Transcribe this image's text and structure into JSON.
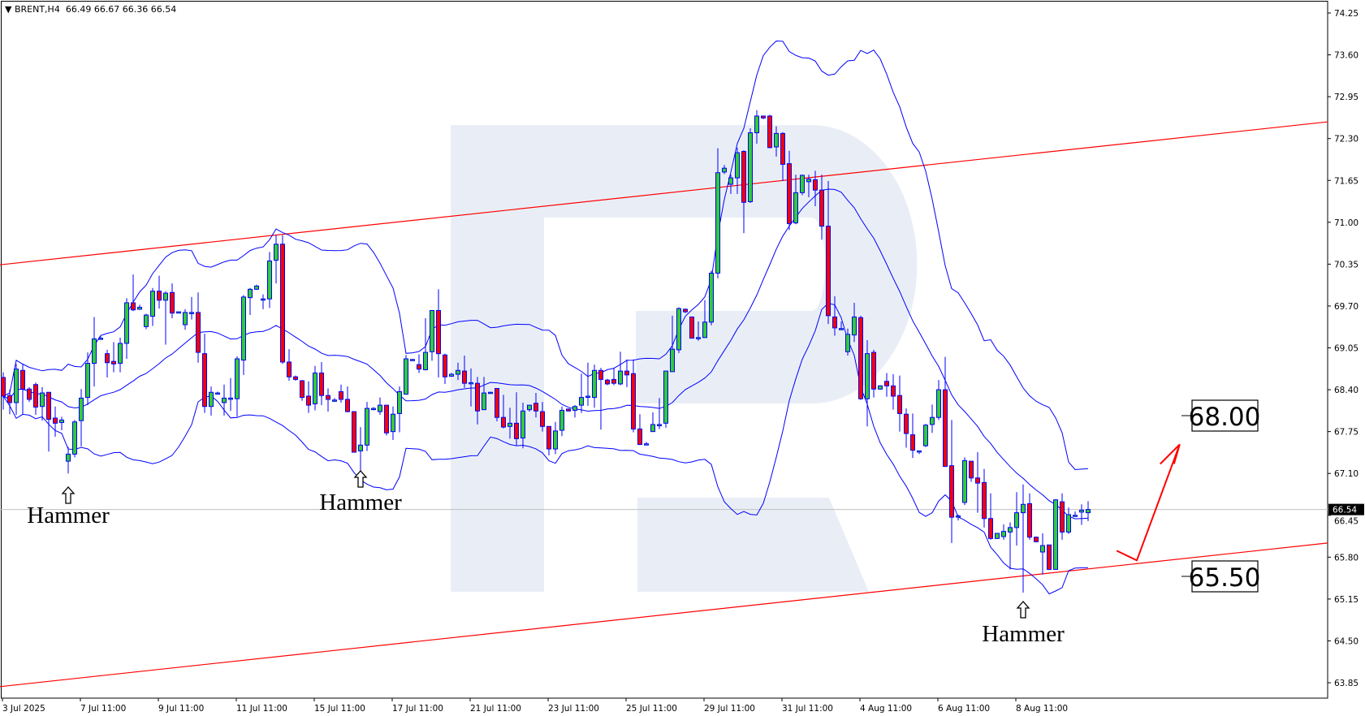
{
  "header": {
    "menu_icon": "triangle-down-icon",
    "symbol": "BRENT,H4",
    "ohlc": "66.49 66.67 66.36 66.54"
  },
  "chart_data": {
    "type": "candlestick",
    "symbol": "BRENT",
    "timeframe": "H4",
    "ylim": [
      63.85,
      74.25
    ],
    "price_ticks": [
      "74.25",
      "73.60",
      "72.95",
      "72.30",
      "71.65",
      "71.00",
      "70.35",
      "69.70",
      "69.05",
      "68.40",
      "67.75",
      "67.10",
      "66.45",
      "65.80",
      "65.15",
      "64.50",
      "63.85"
    ],
    "date_ticks": [
      "3 Jul 2025",
      "7 Jul 11:00",
      "9 Jul 11:00",
      "11 Jul 11:00",
      "15 Jul 11:00",
      "17 Jul 11:00",
      "21 Jul 11:00",
      "23 Jul 11:00",
      "25 Jul 11:00",
      "29 Jul 11:00",
      "31 Jul 11:00",
      "4 Aug 11:00",
      "6 Aug 11:00",
      "8 Aug 11:00"
    ],
    "current_price": "66.54",
    "colors": {
      "bull": "#32cd32",
      "bear": "#ff0000",
      "outline": "#0000ff",
      "bands": "#0000ff",
      "channel": "#ff0000",
      "watermark": "#e9eef6",
      "price_line": "#c0c0c0"
    },
    "indicator": "Bollinger Bands",
    "candles_format": [
      "open",
      "high",
      "low",
      "close"
    ],
    "candles": [
      [
        68.59,
        68.67,
        68.09,
        68.3
      ],
      [
        68.31,
        68.4,
        68.02,
        68.2
      ],
      [
        68.2,
        68.8,
        68.01,
        68.72
      ],
      [
        68.7,
        68.8,
        68.01,
        68.41
      ],
      [
        68.41,
        68.44,
        68.21,
        68.25
      ],
      [
        68.48,
        68.51,
        68.01,
        68.13
      ],
      [
        68.14,
        68.44,
        67.92,
        68.35
      ],
      [
        68.36,
        68.36,
        67.44,
        67.94
      ],
      [
        67.96,
        68.14,
        67.67,
        67.88
      ],
      [
        67.89,
        67.98,
        67.77,
        67.93
      ],
      [
        67.29,
        67.51,
        67.1,
        67.4
      ],
      [
        67.4,
        67.93,
        67.35,
        67.9
      ],
      [
        67.92,
        68.41,
        67.52,
        68.27
      ],
      [
        68.28,
        68.98,
        68.16,
        68.81
      ],
      [
        68.81,
        69.53,
        68.45,
        69.19
      ],
      [
        69.19,
        69.23,
        69.18,
        69.2
      ],
      [
        68.96,
        69.02,
        68.59,
        68.82
      ],
      [
        68.84,
        69.14,
        68.67,
        68.8
      ],
      [
        68.81,
        69.21,
        68.67,
        69.12
      ],
      [
        69.12,
        69.82,
        68.88,
        69.75
      ],
      [
        69.75,
        70.19,
        69.62,
        69.64
      ],
      [
        69.65,
        69.72,
        69.64,
        69.68
      ],
      [
        69.38,
        69.58,
        69.34,
        69.56
      ],
      [
        69.54,
        69.98,
        69.39,
        69.93
      ],
      [
        69.93,
        70.17,
        69.66,
        69.79
      ],
      [
        69.79,
        69.93,
        69.1,
        69.9
      ],
      [
        69.91,
        70.05,
        69.51,
        69.59
      ],
      [
        69.59,
        69.61,
        69.59,
        69.61
      ],
      [
        69.41,
        69.65,
        69.33,
        69.6
      ],
      [
        69.59,
        69.84,
        69.49,
        69.6
      ],
      [
        69.6,
        69.91,
        68.82,
        68.98
      ],
      [
        68.96,
        69.27,
        68.04,
        68.14
      ],
      [
        68.14,
        68.45,
        68.0,
        68.36
      ],
      [
        68.35,
        68.37,
        68.34,
        68.35
      ],
      [
        68.2,
        68.48,
        68.0,
        68.27
      ],
      [
        68.27,
        68.58,
        68.07,
        68.27
      ],
      [
        68.26,
        68.92,
        67.98,
        68.88
      ],
      [
        68.86,
        69.87,
        68.63,
        69.84
      ],
      [
        69.83,
        69.98,
        69.56,
        69.96
      ],
      [
        69.96,
        70.03,
        69.95,
        70.01
      ],
      [
        69.81,
        69.88,
        69.65,
        69.81
      ],
      [
        69.81,
        70.54,
        69.67,
        70.4
      ],
      [
        70.41,
        70.8,
        70.05,
        70.66
      ],
      [
        70.66,
        70.8,
        68.8,
        68.83
      ],
      [
        68.83,
        69.03,
        68.54,
        68.6
      ],
      [
        68.6,
        68.62,
        68.54,
        68.56
      ],
      [
        68.54,
        68.55,
        68.23,
        68.28
      ],
      [
        68.3,
        68.53,
        68.04,
        68.16
      ],
      [
        68.18,
        68.77,
        68.08,
        68.66
      ],
      [
        68.66,
        68.83,
        68.16,
        68.31
      ],
      [
        68.31,
        68.42,
        68.06,
        68.25
      ],
      [
        68.24,
        68.27,
        68.21,
        68.24
      ],
      [
        68.37,
        68.48,
        68.2,
        68.25
      ],
      [
        68.25,
        68.45,
        68.05,
        68.06
      ],
      [
        68.06,
        68.06,
        67.43,
        67.43
      ],
      [
        67.45,
        67.82,
        67.14,
        67.54
      ],
      [
        67.54,
        68.21,
        67.45,
        68.11
      ],
      [
        68.11,
        68.13,
        68.08,
        68.11
      ],
      [
        68.06,
        68.28,
        68.01,
        68.16
      ],
      [
        68.16,
        68.16,
        67.69,
        67.73
      ],
      [
        67.75,
        68.14,
        67.62,
        68.02
      ],
      [
        68.03,
        68.45,
        67.74,
        68.37
      ],
      [
        68.33,
        68.94,
        68.33,
        68.88
      ],
      [
        68.87,
        68.88,
        68.85,
        68.87
      ],
      [
        68.79,
        68.95,
        68.66,
        68.72
      ],
      [
        68.71,
        69.51,
        68.7,
        68.98
      ],
      [
        68.99,
        69.63,
        68.85,
        69.63
      ],
      [
        69.63,
        69.96,
        68.59,
        68.96
      ],
      [
        68.94,
        68.96,
        68.49,
        68.6
      ],
      [
        68.61,
        68.66,
        68.6,
        68.64
      ],
      [
        68.64,
        68.82,
        68.55,
        68.7
      ],
      [
        68.69,
        68.93,
        68.43,
        68.5
      ],
      [
        68.51,
        68.73,
        68.14,
        68.51
      ],
      [
        68.5,
        68.6,
        67.86,
        68.07
      ],
      [
        68.09,
        68.6,
        68.09,
        68.35
      ],
      [
        68.36,
        68.37,
        68.34,
        68.36
      ],
      [
        68.42,
        68.42,
        67.91,
        67.97
      ],
      [
        67.97,
        68.32,
        67.8,
        67.82
      ],
      [
        67.83,
        68.12,
        67.64,
        67.88
      ],
      [
        67.88,
        68.36,
        67.53,
        67.64
      ],
      [
        67.65,
        68.2,
        67.49,
        68.07
      ],
      [
        68.09,
        68.16,
        68.06,
        68.16
      ],
      [
        68.19,
        68.35,
        67.97,
        68.07
      ],
      [
        68.06,
        68.21,
        67.75,
        67.83
      ],
      [
        67.83,
        67.83,
        67.38,
        67.48
      ],
      [
        67.48,
        67.9,
        67.4,
        67.76
      ],
      [
        67.77,
        68.14,
        67.68,
        68.08
      ],
      [
        68.1,
        68.11,
        68.06,
        68.07
      ],
      [
        68.08,
        68.16,
        67.97,
        68.14
      ],
      [
        68.16,
        68.65,
        68.04,
        68.28
      ],
      [
        68.3,
        68.82,
        68.15,
        68.3
      ],
      [
        68.28,
        68.79,
        68.12,
        68.7
      ],
      [
        68.7,
        68.74,
        67.78,
        68.56
      ],
      [
        68.55,
        68.57,
        68.47,
        68.49
      ],
      [
        68.56,
        68.74,
        68.47,
        68.5
      ],
      [
        68.49,
        68.99,
        68.47,
        68.69
      ],
      [
        68.69,
        68.87,
        68.44,
        68.63
      ],
      [
        68.65,
        68.87,
        67.74,
        67.79
      ],
      [
        67.79,
        68.02,
        67.54,
        67.55
      ],
      [
        67.56,
        67.59,
        67.54,
        67.56
      ],
      [
        67.75,
        68.05,
        67.75,
        67.86
      ],
      [
        67.86,
        68.27,
        67.79,
        67.86
      ],
      [
        67.88,
        68.69,
        67.81,
        68.69
      ],
      [
        68.68,
        69.55,
        68.68,
        69.03
      ],
      [
        69.02,
        69.68,
        68.97,
        69.66
      ],
      [
        69.65,
        69.66,
        69.59,
        69.61
      ],
      [
        69.53,
        69.53,
        69.2,
        69.2
      ],
      [
        69.21,
        69.46,
        69.16,
        69.21
      ],
      [
        69.21,
        69.79,
        69.21,
        69.45
      ],
      [
        69.45,
        70.25,
        69.4,
        70.21
      ],
      [
        70.21,
        72.15,
        70.13,
        71.77
      ],
      [
        71.78,
        71.89,
        71.75,
        71.84
      ],
      [
        71.59,
        71.74,
        71.44,
        71.69
      ],
      [
        71.69,
        72.16,
        71.44,
        72.08
      ],
      [
        72.1,
        72.12,
        70.83,
        71.31
      ],
      [
        71.32,
        72.46,
        71.3,
        72.39
      ],
      [
        72.39,
        72.74,
        72.22,
        72.65
      ],
      [
        72.65,
        72.65,
        72.6,
        72.62
      ],
      [
        72.65,
        72.67,
        72.15,
        72.16
      ],
      [
        72.17,
        72.49,
        72.02,
        72.38
      ],
      [
        72.38,
        72.4,
        71.64,
        71.9
      ],
      [
        71.91,
        72.11,
        70.88,
        70.98
      ],
      [
        70.99,
        71.74,
        70.97,
        71.46
      ],
      [
        71.46,
        71.74,
        71.42,
        71.73
      ],
      [
        71.63,
        71.74,
        71.39,
        71.67
      ],
      [
        71.66,
        71.8,
        71.25,
        71.5
      ],
      [
        71.5,
        71.74,
        70.73,
        70.94
      ],
      [
        70.94,
        71.64,
        69.42,
        69.55
      ],
      [
        69.53,
        69.85,
        69.24,
        69.36
      ],
      [
        69.35,
        69.46,
        69.34,
        69.35
      ],
      [
        68.99,
        69.35,
        68.93,
        69.26
      ],
      [
        69.25,
        69.75,
        69.14,
        69.53
      ],
      [
        69.52,
        69.55,
        68.24,
        68.26
      ],
      [
        68.26,
        69.17,
        67.83,
        68.96
      ],
      [
        68.98,
        69.02,
        68.28,
        68.41
      ],
      [
        68.41,
        68.47,
        68.4,
        68.46
      ],
      [
        68.53,
        68.66,
        68.29,
        68.46
      ],
      [
        68.46,
        68.64,
        68.09,
        68.3
      ],
      [
        68.31,
        68.62,
        67.75,
        68.03
      ],
      [
        68.02,
        68.11,
        67.5,
        67.72
      ],
      [
        67.7,
        68.03,
        67.34,
        67.46
      ],
      [
        67.45,
        67.45,
        67.4,
        67.45
      ],
      [
        67.53,
        67.87,
        67.51,
        67.85
      ],
      [
        67.86,
        68.17,
        67.73,
        67.97
      ],
      [
        67.97,
        68.55,
        67.93,
        68.4
      ],
      [
        68.4,
        68.91,
        67.2,
        67.21
      ],
      [
        67.22,
        67.93,
        66.02,
        66.42
      ],
      [
        66.44,
        66.46,
        66.37,
        66.44
      ],
      [
        66.65,
        67.35,
        66.61,
        67.3
      ],
      [
        67.29,
        67.29,
        66.97,
        67.03
      ],
      [
        67.03,
        67.43,
        66.49,
        66.95
      ],
      [
        66.96,
        67.17,
        66.26,
        66.4
      ],
      [
        66.4,
        66.79,
        66.07,
        66.09
      ],
      [
        66.09,
        66.17,
        66.09,
        66.17
      ],
      [
        66.12,
        66.31,
        66.07,
        66.2
      ],
      [
        66.19,
        66.34,
        65.61,
        66.26
      ],
      [
        66.26,
        66.81,
        65.98,
        66.49
      ],
      [
        66.49,
        66.93,
        65.25,
        66.62
      ],
      [
        66.63,
        66.79,
        66.07,
        66.11
      ],
      [
        66.11,
        66.12,
        66.03,
        66.04
      ],
      [
        65.88,
        66.17,
        65.53,
        65.98
      ],
      [
        65.99,
        65.99,
        65.6,
        65.61
      ],
      [
        65.61,
        66.7,
        65.61,
        66.69
      ],
      [
        66.66,
        66.79,
        66.07,
        66.19
      ],
      [
        66.19,
        66.57,
        66.16,
        66.46
      ],
      [
        66.45,
        66.51,
        66.44,
        66.45
      ],
      [
        66.5,
        66.62,
        66.3,
        66.53
      ],
      [
        66.49,
        66.67,
        66.36,
        66.54
      ]
    ],
    "channel_lines": [
      {
        "from": {
          "bar": -0.5,
          "price": 70.34
        },
        "to": {
          "bar": 203.9,
          "price": 72.56
        }
      },
      {
        "from": {
          "bar": -0.5,
          "price": 63.79
        },
        "to": {
          "bar": 203.9,
          "price": 66.02
        }
      }
    ],
    "annotations": {
      "hammers": [
        {
          "bar": 10,
          "label": "Hammer"
        },
        {
          "bar": 55,
          "label": "Hammer"
        },
        {
          "bar": 157,
          "label": "Hammer"
        }
      ],
      "targets": [
        {
          "label": "68.00",
          "price": 68.0
        },
        {
          "label": "65.50",
          "price": 65.5
        }
      ],
      "forecast_arrow": {
        "from": {
          "bar": 171.4,
          "price": 65.9
        },
        "via": {
          "bar": 174.5,
          "price": 65.75
        },
        "to": {
          "bar": 181.1,
          "price": 67.55
        }
      }
    }
  }
}
